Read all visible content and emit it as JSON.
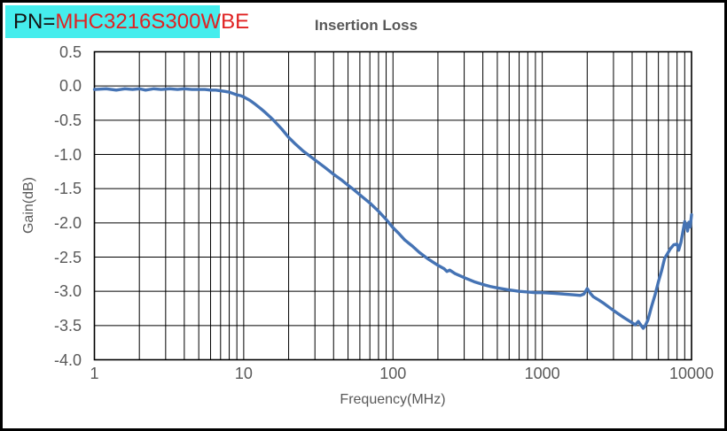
{
  "pn_box": {
    "prefix": "PN=",
    "part_number": "MHC3216S300WBE",
    "bg_color": "#45EDED",
    "prefix_color": "#141414",
    "part_color": "#E02222"
  },
  "chart": {
    "title": "Insertion Loss",
    "x_axis_title": "Frequency(MHz)",
    "y_axis_title": "Gain(dB)",
    "x_tick_labels": [
      "1",
      "10",
      "100",
      "1000",
      "10000"
    ],
    "y_tick_labels": [
      "0.5",
      "0.0",
      "-0.5",
      "-1.0",
      "-1.5",
      "-2.0",
      "-2.5",
      "-3.0",
      "-3.5",
      "-4.0"
    ],
    "line_color": "#4573B4",
    "grid_color": "#000000",
    "border_color": "#000000",
    "label_color": "#595959"
  },
  "chart_data": {
    "type": "line",
    "title": "Insertion Loss",
    "xlabel": "Frequency(MHz)",
    "ylabel": "Gain(dB)",
    "xscale": "log",
    "xlim": [
      1,
      10000
    ],
    "ylim": [
      -4.0,
      0.5
    ],
    "y_tick_step": 0.5,
    "x_tick_values": [
      1,
      10,
      100,
      1000,
      10000
    ],
    "y_tick_values": [
      0.5,
      0.0,
      -0.5,
      -1.0,
      -1.5,
      -2.0,
      -2.5,
      -3.0,
      -3.5,
      -4.0
    ],
    "grid": true,
    "legend": false,
    "series": [
      {
        "name": "Insertion Loss",
        "x": [
          1,
          1.2,
          1.4,
          1.6,
          1.8,
          2,
          2.2,
          2.5,
          2.8,
          3.2,
          3.6,
          4,
          4.5,
          5,
          5.5,
          6,
          6.5,
          7,
          7.5,
          8,
          8.5,
          9,
          9.5,
          10,
          11,
          12,
          13,
          14,
          15,
          16,
          18,
          20,
          22,
          25,
          28,
          30,
          35,
          40,
          45,
          50,
          55,
          60,
          70,
          80,
          90,
          100,
          110,
          120,
          135,
          150,
          170,
          200,
          220,
          230,
          240,
          260,
          300,
          350,
          400,
          450,
          500,
          600,
          700,
          800,
          900,
          1000,
          1200,
          1400,
          1600,
          1800,
          1900,
          2000,
          2100,
          2200,
          2400,
          2600,
          3000,
          3500,
          4000,
          4200,
          4400,
          4600,
          4750,
          4900,
          5100,
          5400,
          5700,
          6000,
          6300,
          6600,
          6900,
          7200,
          7600,
          8000,
          8200,
          8500,
          8800,
          9000,
          9200,
          9400,
          9600,
          9800,
          10000
        ],
        "y": [
          -0.05,
          -0.04,
          -0.06,
          -0.04,
          -0.05,
          -0.04,
          -0.06,
          -0.04,
          -0.05,
          -0.04,
          -0.05,
          -0.04,
          -0.05,
          -0.05,
          -0.05,
          -0.06,
          -0.06,
          -0.07,
          -0.08,
          -0.09,
          -0.11,
          -0.13,
          -0.14,
          -0.16,
          -0.21,
          -0.27,
          -0.33,
          -0.39,
          -0.45,
          -0.51,
          -0.63,
          -0.75,
          -0.84,
          -0.95,
          -1.03,
          -1.08,
          -1.19,
          -1.29,
          -1.37,
          -1.45,
          -1.52,
          -1.59,
          -1.71,
          -1.83,
          -1.95,
          -2.07,
          -2.16,
          -2.25,
          -2.34,
          -2.43,
          -2.52,
          -2.62,
          -2.67,
          -2.71,
          -2.69,
          -2.74,
          -2.8,
          -2.86,
          -2.9,
          -2.93,
          -2.95,
          -2.98,
          -3.0,
          -3.01,
          -3.02,
          -3.02,
          -3.03,
          -3.04,
          -3.05,
          -3.06,
          -3.04,
          -2.96,
          -3.03,
          -3.08,
          -3.13,
          -3.18,
          -3.28,
          -3.38,
          -3.46,
          -3.49,
          -3.44,
          -3.5,
          -3.54,
          -3.5,
          -3.42,
          -3.22,
          -3.05,
          -2.86,
          -2.7,
          -2.52,
          -2.45,
          -2.38,
          -2.32,
          -2.31,
          -2.4,
          -2.28,
          -2.1,
          -1.98,
          -2.04,
          -2.12,
          -1.99,
          -2.06,
          -1.88
        ]
      }
    ]
  }
}
